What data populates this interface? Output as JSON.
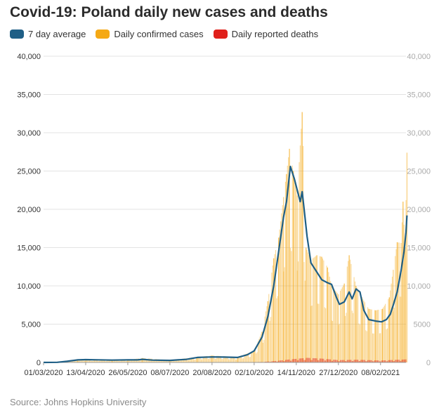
{
  "title": "Covid-19: Poland daily new cases and deaths",
  "source": "Source: Johns Hopkins University",
  "legend": [
    {
      "label": "7 day average",
      "color": "#1f5f86"
    },
    {
      "label": "Daily confirmed cases",
      "color": "#f5a915"
    },
    {
      "label": "Daily reported deaths",
      "color": "#e0201b"
    }
  ],
  "chart_data": {
    "type": "bar",
    "x_type": "date",
    "x_start": "2020-03-01",
    "x_end": "2021-03-06",
    "ylim": [
      0,
      40000
    ],
    "y_ticks": [
      0,
      5000,
      10000,
      15000,
      20000,
      25000,
      30000,
      35000,
      40000
    ],
    "y_tick_labels": [
      "0",
      "5,000",
      "10,000",
      "15,000",
      "20,000",
      "25,000",
      "30,000",
      "35,000",
      "40,000"
    ],
    "right_y_tick_labels": [
      "0",
      "5000",
      "10,000",
      "15,000",
      "20,000",
      "25,000",
      "30,000",
      "35,000",
      "40,000"
    ],
    "x_ticks": [
      "2020-03-01",
      "2020-04-13",
      "2020-05-26",
      "2020-07-08",
      "2020-08-20",
      "2020-10-02",
      "2020-11-14",
      "2020-12-27",
      "2021-02-08"
    ],
    "x_tick_labels": [
      "01/03/2020",
      "13/04/2020",
      "26/05/2020",
      "08/07/2020",
      "20/08/2020",
      "02/10/2020",
      "14/11/2020",
      "27/12/2020",
      "08/02/2021"
    ],
    "grid": true,
    "legend_position": "top-left",
    "series": [
      {
        "name": "7 day average",
        "chart_type": "line",
        "color": "#1f5f86",
        "points": [
          [
            "2020-03-01",
            0
          ],
          [
            "2020-03-15",
            20
          ],
          [
            "2020-03-25",
            150
          ],
          [
            "2020-04-05",
            330
          ],
          [
            "2020-04-13",
            370
          ],
          [
            "2020-04-25",
            340
          ],
          [
            "2020-05-10",
            300
          ],
          [
            "2020-05-26",
            330
          ],
          [
            "2020-06-05",
            330
          ],
          [
            "2020-06-10",
            400
          ],
          [
            "2020-06-20",
            300
          ],
          [
            "2020-07-08",
            270
          ],
          [
            "2020-07-25",
            400
          ],
          [
            "2020-08-05",
            650
          ],
          [
            "2020-08-20",
            720
          ],
          [
            "2020-09-01",
            700
          ],
          [
            "2020-09-15",
            650
          ],
          [
            "2020-09-25",
            1000
          ],
          [
            "2020-10-02",
            1500
          ],
          [
            "2020-10-10",
            3300
          ],
          [
            "2020-10-16",
            6000
          ],
          [
            "2020-10-22",
            10000
          ],
          [
            "2020-10-27",
            14500
          ],
          [
            "2020-11-01",
            19000
          ],
          [
            "2020-11-04",
            21000
          ],
          [
            "2020-11-08",
            25600
          ],
          [
            "2020-11-12",
            24000
          ],
          [
            "2020-11-15",
            22500
          ],
          [
            "2020-11-18",
            21000
          ],
          [
            "2020-11-20",
            22300
          ],
          [
            "2020-11-22",
            20000
          ],
          [
            "2020-11-25",
            16500
          ],
          [
            "2020-11-29",
            13000
          ],
          [
            "2020-12-05",
            11800
          ],
          [
            "2020-12-10",
            10800
          ],
          [
            "2020-12-16",
            10400
          ],
          [
            "2020-12-20",
            10200
          ],
          [
            "2020-12-25",
            8500
          ],
          [
            "2020-12-28",
            7600
          ],
          [
            "2021-01-02",
            7900
          ],
          [
            "2021-01-07",
            9200
          ],
          [
            "2021-01-10",
            8300
          ],
          [
            "2021-01-14",
            9600
          ],
          [
            "2021-01-18",
            9200
          ],
          [
            "2021-01-22",
            6800
          ],
          [
            "2021-01-27",
            5600
          ],
          [
            "2021-02-03",
            5400
          ],
          [
            "2021-02-09",
            5300
          ],
          [
            "2021-02-14",
            5600
          ],
          [
            "2021-02-18",
            6300
          ],
          [
            "2021-02-21",
            7500
          ],
          [
            "2021-02-25",
            9200
          ],
          [
            "2021-03-01",
            12000
          ],
          [
            "2021-03-04",
            14500
          ],
          [
            "2021-03-06",
            17000
          ],
          [
            "2021-03-07",
            19200
          ]
        ]
      },
      {
        "name": "Daily confirmed cases",
        "chart_type": "bar",
        "color": "#f5a915",
        "values_note_free": true,
        "points": [
          [
            "2020-03-01",
            0
          ],
          [
            "2020-03-20",
            100
          ],
          [
            "2020-04-05",
            400
          ],
          [
            "2020-04-13",
            380
          ],
          [
            "2020-05-10",
            320
          ],
          [
            "2020-05-26",
            350
          ],
          [
            "2020-06-10",
            570
          ],
          [
            "2020-07-08",
            300
          ],
          [
            "2020-08-05",
            700
          ],
          [
            "2020-08-20",
            900
          ],
          [
            "2020-09-15",
            700
          ],
          [
            "2020-10-02",
            1500
          ],
          [
            "2020-10-10",
            4000
          ],
          [
            "2020-10-16",
            8000
          ],
          [
            "2020-10-22",
            13600
          ],
          [
            "2020-10-27",
            16300
          ],
          [
            "2020-11-01",
            21600
          ],
          [
            "2020-11-04",
            24600
          ],
          [
            "2020-11-07",
            27900
          ],
          [
            "2020-11-11",
            25000
          ],
          [
            "2020-11-15",
            21800
          ],
          [
            "2020-11-20",
            32700
          ],
          [
            "2020-11-24",
            15000
          ],
          [
            "2020-11-29",
            13400
          ],
          [
            "2020-12-05",
            14000
          ],
          [
            "2020-12-10",
            13800
          ],
          [
            "2020-12-16",
            12400
          ],
          [
            "2020-12-20",
            10000
          ],
          [
            "2020-12-27",
            8900
          ],
          [
            "2021-01-02",
            10300
          ],
          [
            "2021-01-07",
            14000
          ],
          [
            "2021-01-14",
            10000
          ],
          [
            "2021-01-20",
            8500
          ],
          [
            "2021-01-27",
            7000
          ],
          [
            "2021-02-03",
            6800
          ],
          [
            "2021-02-10",
            7000
          ],
          [
            "2021-02-17",
            8500
          ],
          [
            "2021-02-21",
            12100
          ],
          [
            "2021-02-25",
            15700
          ],
          [
            "2021-03-01",
            15600
          ],
          [
            "2021-03-03",
            21000
          ],
          [
            "2021-03-05",
            15000
          ],
          [
            "2021-03-07",
            27400
          ]
        ]
      },
      {
        "name": "Daily reported deaths",
        "chart_type": "bar",
        "color": "#e0201b",
        "points": [
          [
            "2020-03-01",
            0
          ],
          [
            "2020-04-15",
            30
          ],
          [
            "2020-06-01",
            20
          ],
          [
            "2020-09-01",
            15
          ],
          [
            "2020-10-10",
            60
          ],
          [
            "2020-10-25",
            200
          ],
          [
            "2020-11-08",
            400
          ],
          [
            "2020-11-25",
            600
          ],
          [
            "2020-12-10",
            500
          ],
          [
            "2020-12-27",
            300
          ],
          [
            "2021-01-15",
            350
          ],
          [
            "2021-02-08",
            250
          ],
          [
            "2021-03-07",
            400
          ]
        ]
      }
    ]
  }
}
